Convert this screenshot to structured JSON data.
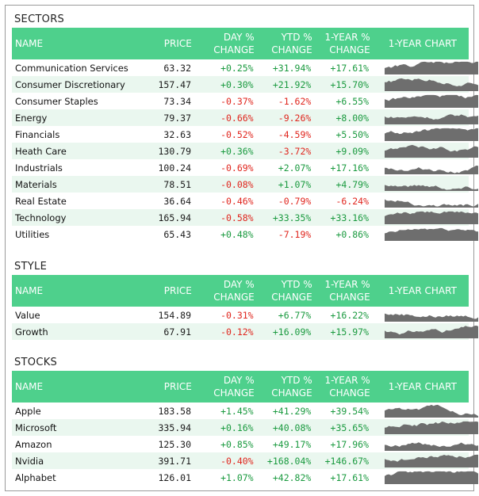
{
  "columns": {
    "name": "NAME",
    "price": "PRICE",
    "day1": "DAY %",
    "day2": "CHANGE",
    "ytd1": "YTD %",
    "ytd2": "CHANGE",
    "yr1": "1-YEAR %",
    "yr2": "CHANGE",
    "chart": "1-YEAR CHART"
  },
  "colors": {
    "header_bg": "#4ed08c",
    "positive": "#1a9a3f",
    "negative": "#e0261e",
    "row_alt": "#eaf7ef",
    "spark": "#6e6e6e"
  },
  "sections": {
    "sectors": {
      "title": "SECTORS",
      "rows": [
        {
          "name": "Communication Services",
          "price": "63.32",
          "day": "+0.25%",
          "ytd": "+31.94%",
          "yr": "+17.61%"
        },
        {
          "name": "Consumer Discretionary",
          "price": "157.47",
          "day": "+0.30%",
          "ytd": "+21.92%",
          "yr": "+15.70%"
        },
        {
          "name": "Consumer Staples",
          "price": "73.34",
          "day": "-0.37%",
          "ytd": "-1.62%",
          "yr": "+6.55%"
        },
        {
          "name": "Energy",
          "price": "79.37",
          "day": "-0.66%",
          "ytd": "-9.26%",
          "yr": "+8.00%"
        },
        {
          "name": "Financials",
          "price": "32.63",
          "day": "-0.52%",
          "ytd": "-4.59%",
          "yr": "+5.50%"
        },
        {
          "name": "Heath Care",
          "price": "130.79",
          "day": "+0.36%",
          "ytd": "-3.72%",
          "yr": "+9.09%"
        },
        {
          "name": "Industrials",
          "price": "100.24",
          "day": "-0.69%",
          "ytd": "+2.07%",
          "yr": "+17.16%"
        },
        {
          "name": "Materials",
          "price": "78.51",
          "day": "-0.08%",
          "ytd": "+1.07%",
          "yr": "+4.79%"
        },
        {
          "name": "Real Estate",
          "price": "36.64",
          "day": "-0.46%",
          "ytd": "-0.79%",
          "yr": "-6.24%"
        },
        {
          "name": "Technology",
          "price": "165.94",
          "day": "-0.58%",
          "ytd": "+33.35%",
          "yr": "+33.16%"
        },
        {
          "name": "Utilities",
          "price": "65.43",
          "day": "+0.48%",
          "ytd": "-7.19%",
          "yr": "+0.86%"
        }
      ]
    },
    "style": {
      "title": "STYLE",
      "rows": [
        {
          "name": "Value",
          "price": "154.89",
          "day": "-0.31%",
          "ytd": "+6.77%",
          "yr": "+16.22%"
        },
        {
          "name": "Growth",
          "price": "67.91",
          "day": "-0.12%",
          "ytd": "+16.09%",
          "yr": "+15.97%"
        }
      ]
    },
    "stocks": {
      "title": "STOCKS",
      "rows": [
        {
          "name": "Apple",
          "price": "183.58",
          "day": "+1.45%",
          "ytd": "+41.29%",
          "yr": "+39.54%"
        },
        {
          "name": "Microsoft",
          "price": "335.94",
          "day": "+0.16%",
          "ytd": "+40.08%",
          "yr": "+35.65%"
        },
        {
          "name": "Amazon",
          "price": "125.30",
          "day": "+0.85%",
          "ytd": "+49.17%",
          "yr": "+17.96%"
        },
        {
          "name": "Nvidia",
          "price": "391.71",
          "day": "-0.40%",
          "ytd": "+168.04%",
          "yr": "+146.67%"
        },
        {
          "name": "Alphabet",
          "price": "126.01",
          "day": "+1.07%",
          "ytd": "+42.82%",
          "yr": "+17.61%"
        }
      ]
    }
  }
}
